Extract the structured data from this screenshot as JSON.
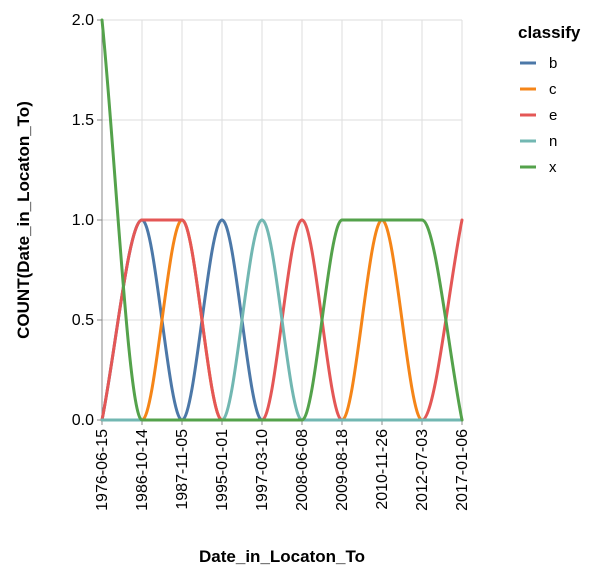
{
  "chart_data": {
    "type": "line",
    "interpolation": "monotone",
    "xlabel": "Date_in_Locaton_To",
    "ylabel": "COUNT(Date_in_Locaton_To)",
    "x_scale": "ordinal",
    "categories": [
      "1976-06-15",
      "1986-10-14",
      "1987-11-05",
      "1995-01-01",
      "1997-03-10",
      "2008-06-08",
      "2009-08-18",
      "2010-11-26",
      "2012-07-03",
      "2017-01-06"
    ],
    "y_ticks": [
      "0.0",
      "0.5",
      "1.0",
      "1.5",
      "2.0"
    ],
    "ylim": [
      0,
      2
    ],
    "grid": true,
    "legend_title": "classify",
    "legend_position": "right",
    "series": [
      {
        "name": "b",
        "color": "#4c78a8",
        "values": [
          0,
          1,
          0,
          1,
          0,
          0,
          0,
          0,
          0,
          0
        ]
      },
      {
        "name": "c",
        "color": "#f58518",
        "values": [
          0,
          0,
          1,
          0,
          0,
          0,
          0,
          1,
          0,
          0
        ]
      },
      {
        "name": "e",
        "color": "#e45756",
        "values": [
          0,
          1,
          1,
          0,
          0,
          1,
          0,
          0,
          0,
          1
        ]
      },
      {
        "name": "n",
        "color": "#72b7b2",
        "values": [
          0,
          0,
          0,
          0,
          1,
          0,
          0,
          0,
          0,
          0
        ]
      },
      {
        "name": "x",
        "color": "#54a24b",
        "values": [
          2,
          0,
          0,
          0,
          0,
          0,
          1,
          1,
          1,
          0
        ]
      }
    ]
  }
}
